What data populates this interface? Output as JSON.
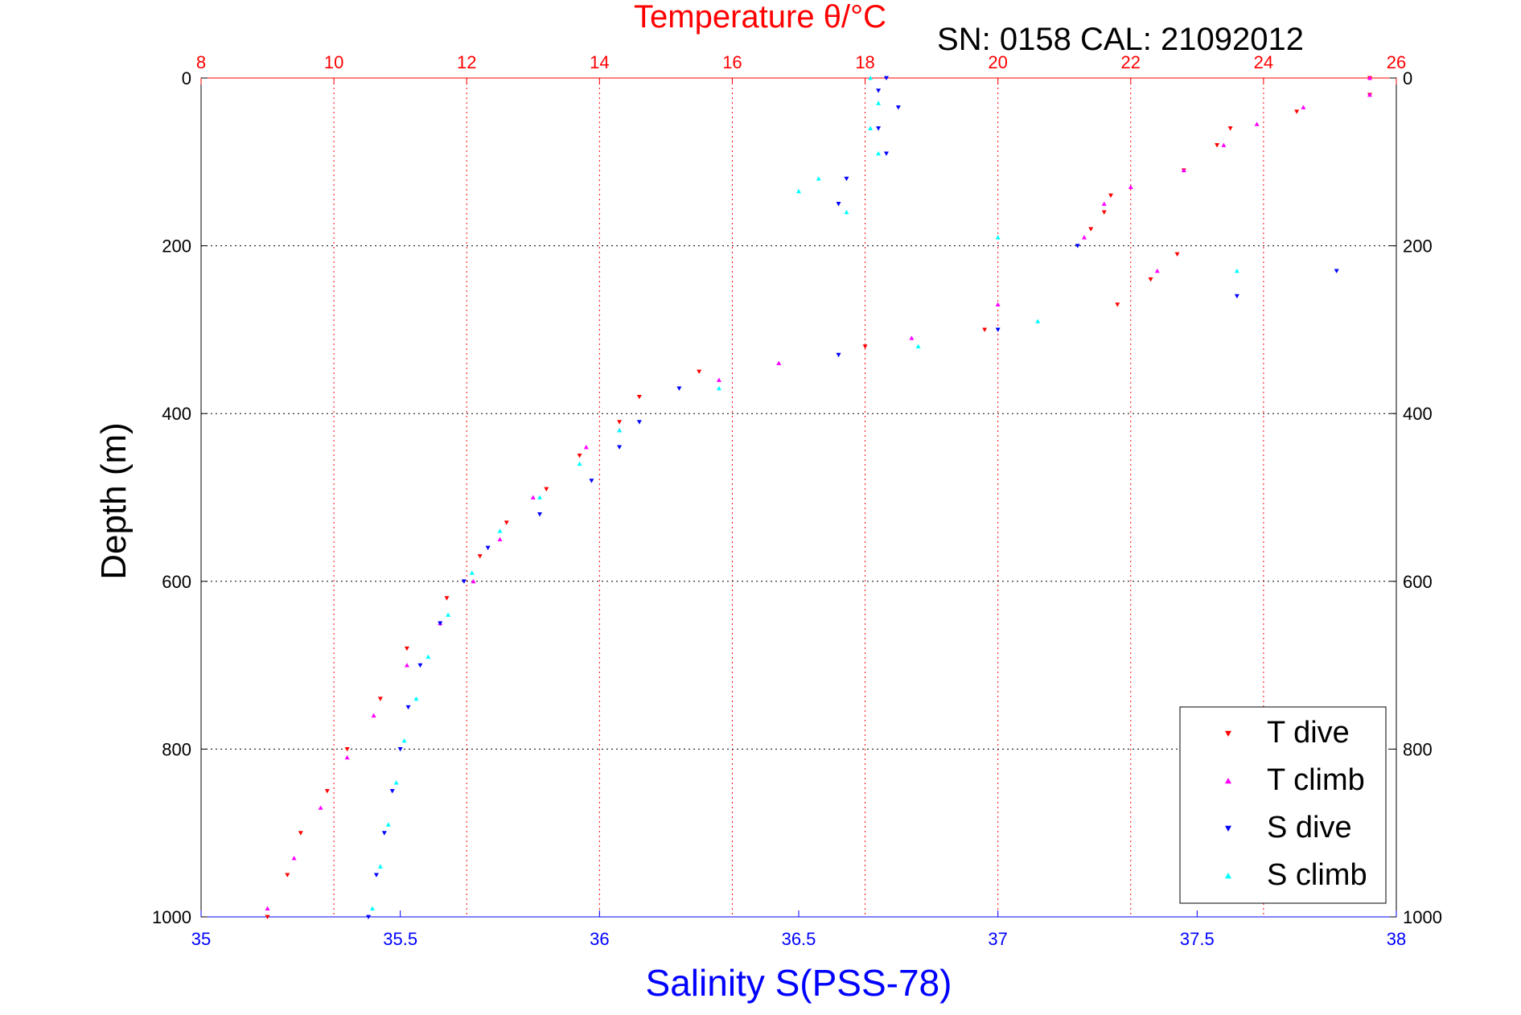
{
  "chart_data": {
    "type": "scatter",
    "title": "Temperature θ/°C",
    "subtitle": "SN: 0158  CAL: 21092012",
    "xlabel": "Salinity S(PSS-78)",
    "ylabel": "Depth (m)",
    "x_bottom": {
      "lim": [
        35,
        38
      ],
      "ticks": [
        "35",
        "35.5",
        "36",
        "36.5",
        "37",
        "37.5",
        "38"
      ],
      "color": "#0000ff"
    },
    "x_top": {
      "lim": [
        8,
        26
      ],
      "ticks": [
        "8",
        "10",
        "12",
        "14",
        "16",
        "18",
        "20",
        "22",
        "24",
        "26"
      ],
      "color": "#ff0000"
    },
    "y": {
      "lim": [
        0,
        1000
      ],
      "reversed": true,
      "ticks": [
        "0",
        "200",
        "400",
        "600",
        "800",
        "1000"
      ]
    },
    "grid": {
      "vertical_color": "#ff0000",
      "horizontal_color": "#000000",
      "style": "dotted"
    },
    "legend_position": "bottom-right",
    "series": [
      {
        "name": "T dive",
        "axis": "top",
        "color": "#ff0000",
        "marker": "triangle-down",
        "points": [
          [
            25.6,
            0
          ],
          [
            25.6,
            20
          ],
          [
            24.5,
            40
          ],
          [
            23.5,
            60
          ],
          [
            23.3,
            80
          ],
          [
            22.8,
            110
          ],
          [
            21.7,
            140
          ],
          [
            21.6,
            160
          ],
          [
            21.4,
            180
          ],
          [
            22.7,
            210
          ],
          [
            22.3,
            240
          ],
          [
            21.8,
            270
          ],
          [
            19.8,
            300
          ],
          [
            18.0,
            320
          ],
          [
            15.5,
            350
          ],
          [
            14.6,
            380
          ],
          [
            14.3,
            410
          ],
          [
            13.7,
            450
          ],
          [
            13.2,
            490
          ],
          [
            12.6,
            530
          ],
          [
            12.2,
            570
          ],
          [
            11.7,
            620
          ],
          [
            11.1,
            680
          ],
          [
            10.7,
            740
          ],
          [
            10.2,
            800
          ],
          [
            9.9,
            850
          ],
          [
            9.5,
            900
          ],
          [
            9.3,
            950
          ],
          [
            9.0,
            1000
          ]
        ]
      },
      {
        "name": "T climb",
        "axis": "top",
        "color": "#ff00ff",
        "marker": "triangle-up",
        "points": [
          [
            25.6,
            0
          ],
          [
            25.6,
            20
          ],
          [
            24.6,
            35
          ],
          [
            23.9,
            55
          ],
          [
            23.4,
            80
          ],
          [
            22.8,
            110
          ],
          [
            22.0,
            130
          ],
          [
            21.6,
            150
          ],
          [
            21.3,
            190
          ],
          [
            22.4,
            230
          ],
          [
            20.0,
            270
          ],
          [
            18.7,
            310
          ],
          [
            16.7,
            340
          ],
          [
            15.8,
            360
          ],
          [
            14.3,
            420
          ],
          [
            13.8,
            440
          ],
          [
            13.0,
            500
          ],
          [
            12.5,
            550
          ],
          [
            12.1,
            600
          ],
          [
            11.6,
            650
          ],
          [
            11.1,
            700
          ],
          [
            10.6,
            760
          ],
          [
            10.2,
            810
          ],
          [
            9.8,
            870
          ],
          [
            9.4,
            930
          ],
          [
            9.0,
            990
          ]
        ]
      },
      {
        "name": "S dive",
        "axis": "bottom",
        "color": "#0000ff",
        "marker": "triangle-down",
        "points": [
          [
            36.72,
            0
          ],
          [
            36.7,
            15
          ],
          [
            36.75,
            35
          ],
          [
            36.7,
            60
          ],
          [
            36.72,
            90
          ],
          [
            36.62,
            120
          ],
          [
            36.6,
            150
          ],
          [
            37.2,
            200
          ],
          [
            37.85,
            230
          ],
          [
            37.6,
            260
          ],
          [
            37.0,
            300
          ],
          [
            36.6,
            330
          ],
          [
            36.2,
            370
          ],
          [
            36.1,
            410
          ],
          [
            36.05,
            440
          ],
          [
            35.98,
            480
          ],
          [
            35.85,
            520
          ],
          [
            35.72,
            560
          ],
          [
            35.66,
            600
          ],
          [
            35.6,
            650
          ],
          [
            35.55,
            700
          ],
          [
            35.52,
            750
          ],
          [
            35.5,
            800
          ],
          [
            35.48,
            850
          ],
          [
            35.46,
            900
          ],
          [
            35.44,
            950
          ],
          [
            35.42,
            1000
          ]
        ]
      },
      {
        "name": "S climb",
        "axis": "bottom",
        "color": "#00ffff",
        "marker": "triangle-up",
        "points": [
          [
            36.68,
            0
          ],
          [
            36.7,
            30
          ],
          [
            36.68,
            60
          ],
          [
            36.7,
            90
          ],
          [
            36.55,
            120
          ],
          [
            36.5,
            135
          ],
          [
            36.62,
            160
          ],
          [
            37.0,
            190
          ],
          [
            37.6,
            230
          ],
          [
            37.1,
            290
          ],
          [
            36.8,
            320
          ],
          [
            36.3,
            370
          ],
          [
            36.05,
            420
          ],
          [
            35.95,
            460
          ],
          [
            35.85,
            500
          ],
          [
            35.75,
            540
          ],
          [
            35.68,
            590
          ],
          [
            35.62,
            640
          ],
          [
            35.57,
            690
          ],
          [
            35.54,
            740
          ],
          [
            35.51,
            790
          ],
          [
            35.49,
            840
          ],
          [
            35.47,
            890
          ],
          [
            35.45,
            940
          ],
          [
            35.43,
            990
          ]
        ]
      }
    ],
    "sn_label": "SN: 0158  CAL: 21092012"
  }
}
